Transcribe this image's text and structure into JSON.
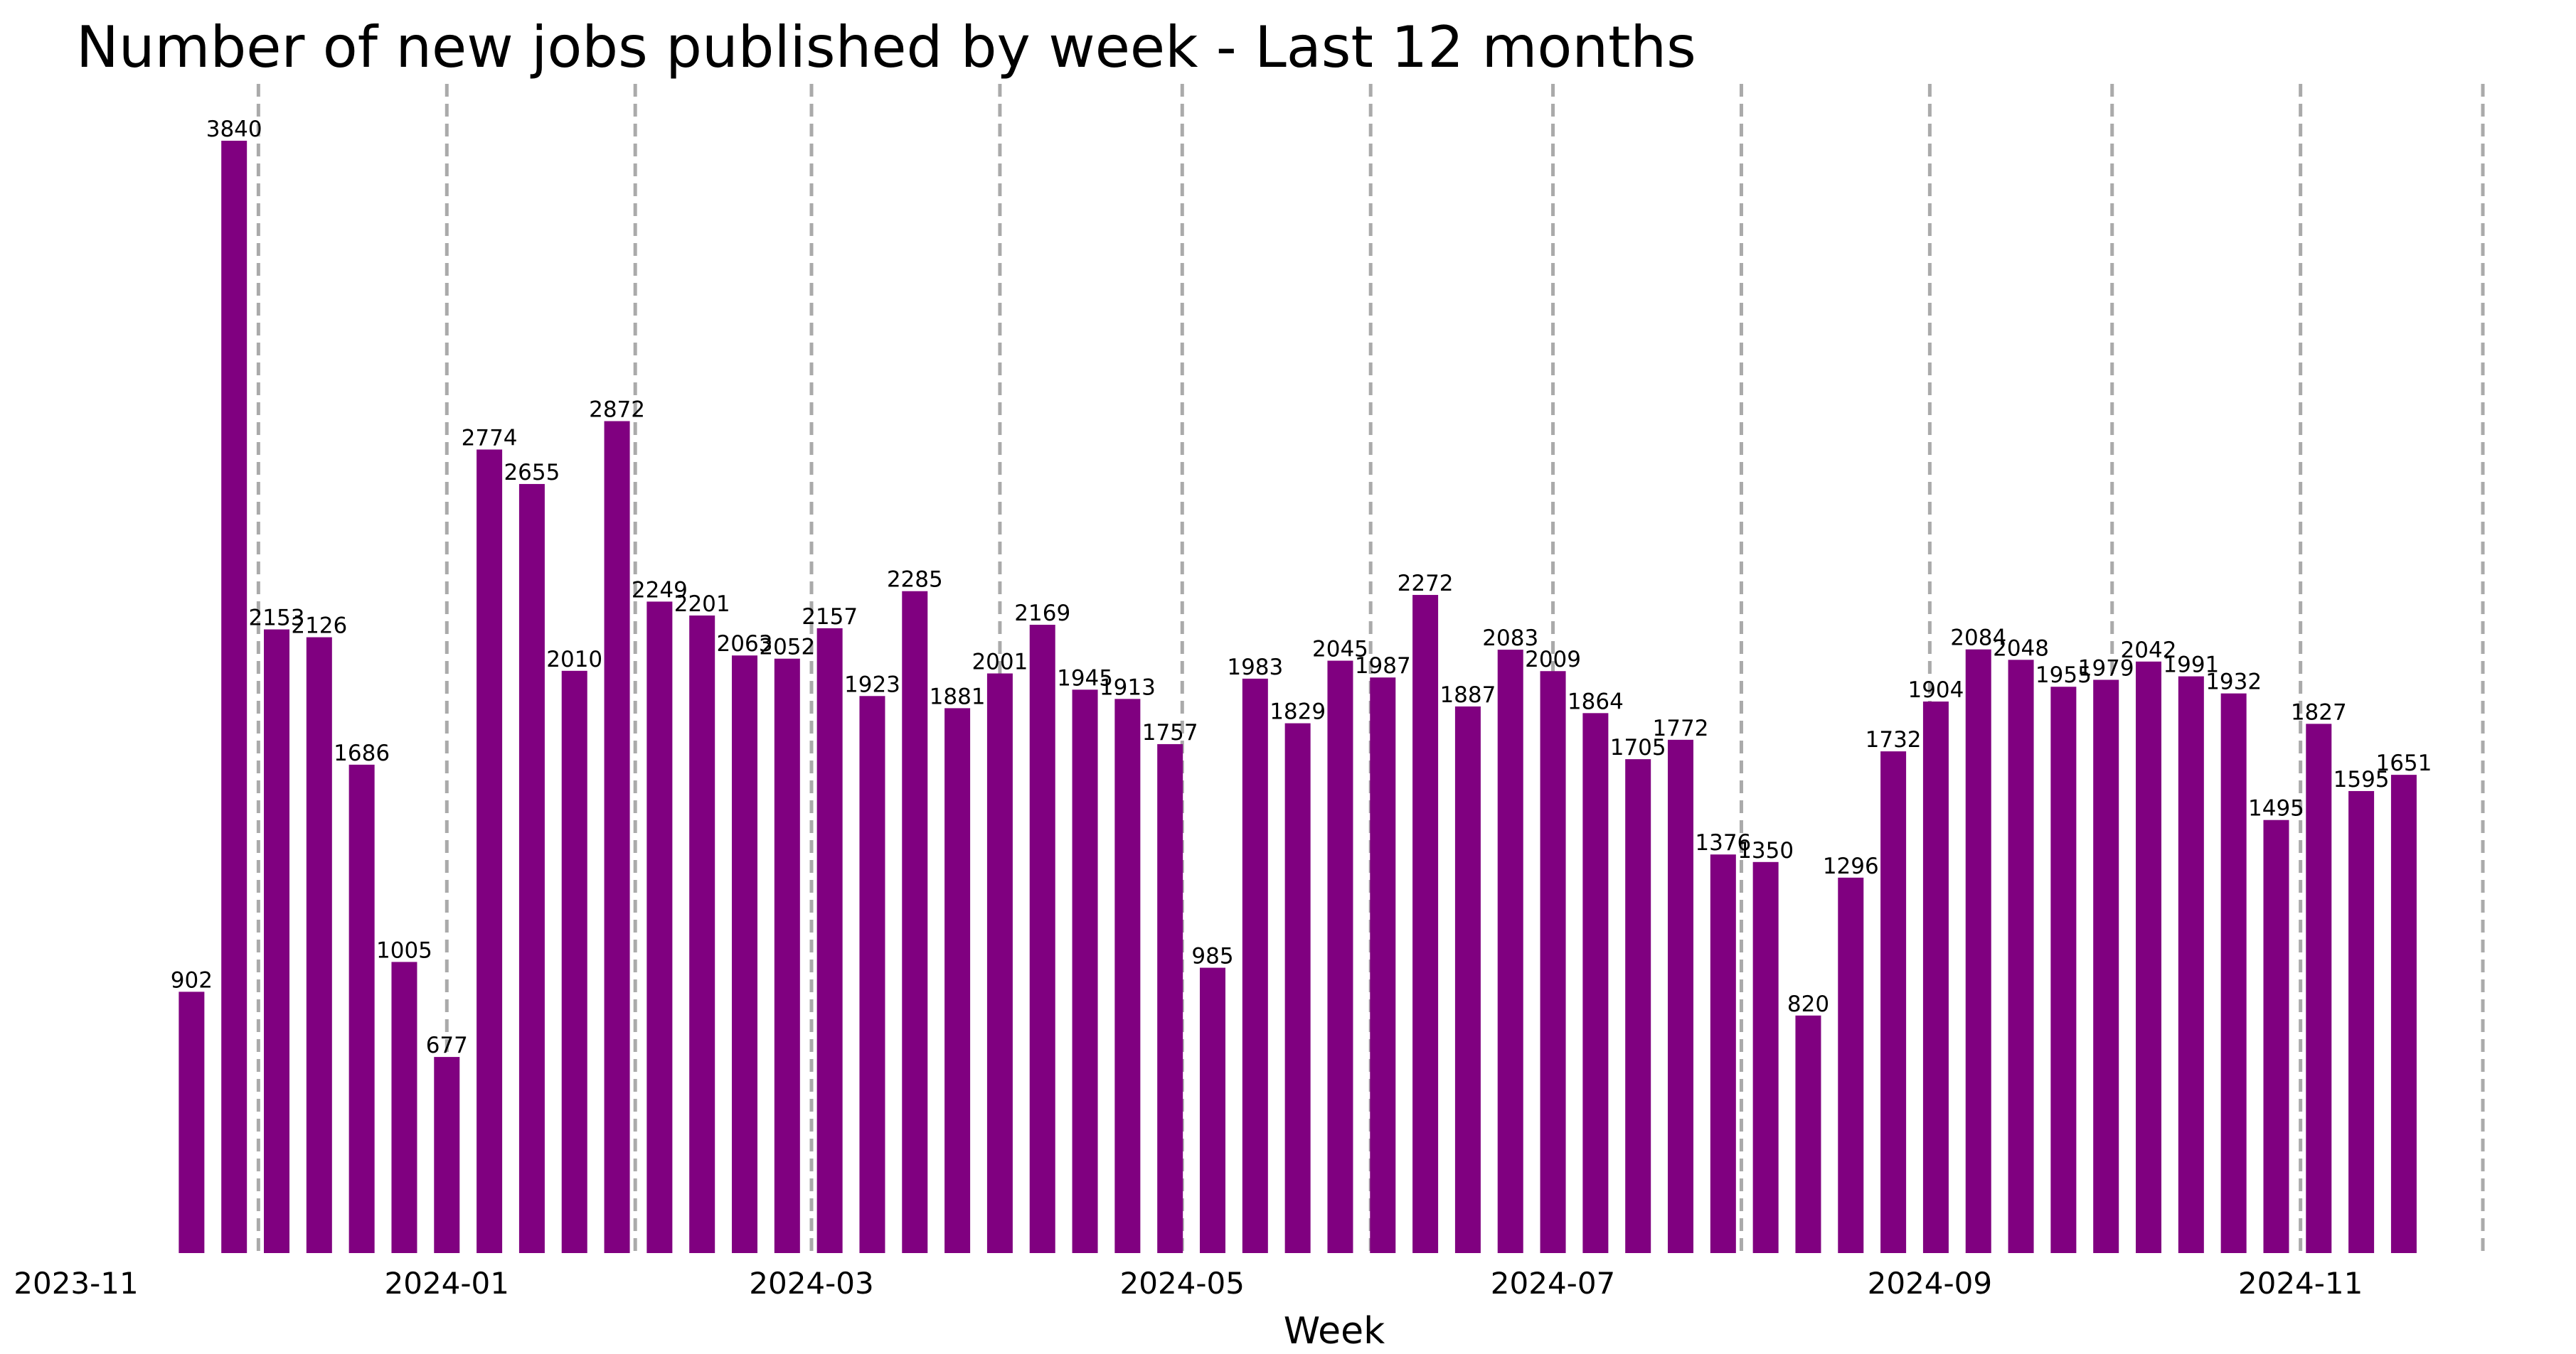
{
  "chart_data": {
    "type": "bar",
    "title": "Number of new jobs published by week - Last 12 months",
    "xlabel": "Week",
    "ylabel": "",
    "color": "#800080",
    "grid_color": "#aaaaaa",
    "categories": [
      "2023-11-20",
      "2023-11-27",
      "2023-12-04",
      "2023-12-11",
      "2023-12-18",
      "2023-12-25",
      "2024-01-01",
      "2024-01-08",
      "2024-01-15",
      "2024-01-22",
      "2024-01-29",
      "2024-02-05",
      "2024-02-12",
      "2024-02-19",
      "2024-02-26",
      "2024-03-04",
      "2024-03-11",
      "2024-03-18",
      "2024-03-25",
      "2024-04-01",
      "2024-04-08",
      "2024-04-15",
      "2024-04-22",
      "2024-04-29",
      "2024-05-06",
      "2024-05-13",
      "2024-05-20",
      "2024-05-27",
      "2024-06-03",
      "2024-06-10",
      "2024-06-17",
      "2024-06-24",
      "2024-07-01",
      "2024-07-08",
      "2024-07-15",
      "2024-07-22",
      "2024-07-29",
      "2024-08-05",
      "2024-08-12",
      "2024-08-19",
      "2024-08-26",
      "2024-09-02",
      "2024-09-09",
      "2024-09-16",
      "2024-09-23",
      "2024-09-30",
      "2024-10-07",
      "2024-10-14",
      "2024-10-21",
      "2024-10-28",
      "2024-11-04",
      "2024-11-11",
      "2024-11-18"
    ],
    "values": [
      902,
      3840,
      2153,
      2126,
      1686,
      1005,
      677,
      2774,
      2655,
      2010,
      2872,
      2249,
      2201,
      2063,
      2052,
      2157,
      1923,
      2285,
      1881,
      2001,
      2169,
      1945,
      1913,
      1757,
      985,
      1983,
      1829,
      2045,
      1987,
      2272,
      1887,
      2083,
      2009,
      1864,
      1705,
      1772,
      1376,
      1350,
      820,
      1296,
      1732,
      1904,
      2084,
      2048,
      1955,
      1979,
      2042,
      1991,
      1932,
      1495,
      1827,
      1595,
      1651
    ],
    "xticks": [
      "2023-11",
      "2024-01",
      "2024-03",
      "2024-05",
      "2024-07",
      "2024-09",
      "2024-11"
    ],
    "xtick_dates": [
      "2023-11-01",
      "2024-01-01",
      "2024-03-01",
      "2024-05-01",
      "2024-07-01",
      "2024-09-01",
      "2024-11-01"
    ],
    "month_lines": [
      "2023-12-01",
      "2024-01-01",
      "2024-02-01",
      "2024-03-01",
      "2024-04-01",
      "2024-05-01",
      "2024-06-01",
      "2024-07-01",
      "2024-08-01",
      "2024-09-01",
      "2024-10-01",
      "2024-11-01",
      "2024-12-01"
    ],
    "xlim": [
      "2023-11-01",
      "2024-12-02"
    ],
    "ylim": [
      0,
      3950
    ],
    "grid": "vertical dashed lines at month starts",
    "legend": "none"
  }
}
